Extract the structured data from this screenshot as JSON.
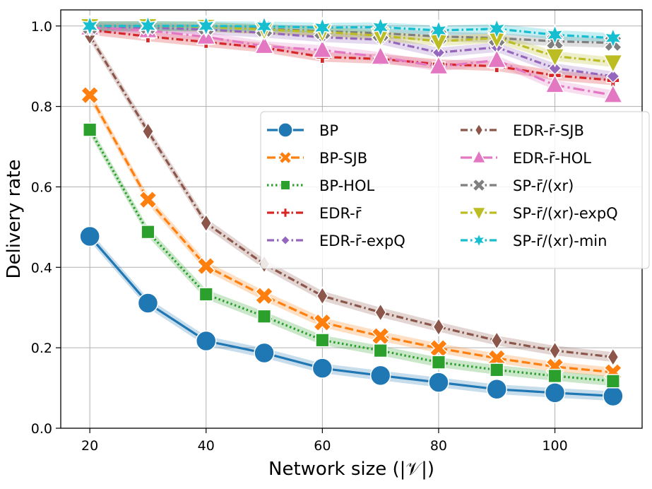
{
  "chart_data": {
    "type": "line",
    "xlabel": "Network size (|𝒱|)",
    "ylabel": "Delivery rate",
    "xlim": [
      15,
      115
    ],
    "ylim": [
      0.0,
      1.04
    ],
    "xticks": [
      20,
      40,
      60,
      80,
      100
    ],
    "yticks": [
      0.0,
      0.2,
      0.4,
      0.6,
      0.8,
      1.0
    ],
    "xtick_labels": [
      "20",
      "40",
      "60",
      "80",
      "100"
    ],
    "ytick_labels": [
      "0.0",
      "0.2",
      "0.4",
      "0.6",
      "0.8",
      "1.0"
    ],
    "grid": true,
    "legend_position": "center-right",
    "x": [
      20,
      30,
      40,
      50,
      60,
      70,
      80,
      90,
      100,
      110
    ],
    "series": [
      {
        "name": "BP",
        "color": "#1f77b4",
        "marker": "circle",
        "dash": "solid",
        "values": [
          0.477,
          0.311,
          0.217,
          0.187,
          0.149,
          0.131,
          0.114,
          0.097,
          0.088,
          0.08
        ]
      },
      {
        "name": "BP-SJB",
        "color": "#ff7f0e",
        "marker": "x",
        "dash": "dashed",
        "values": [
          0.828,
          0.568,
          0.403,
          0.329,
          0.263,
          0.229,
          0.199,
          0.174,
          0.153,
          0.139
        ]
      },
      {
        "name": "BP-HOL",
        "color": "#2ca02c",
        "marker": "square",
        "dash": "dotted",
        "values": [
          0.742,
          0.488,
          0.333,
          0.278,
          0.219,
          0.193,
          0.164,
          0.145,
          0.13,
          0.117
        ]
      },
      {
        "name": "EDR-r̄",
        "color": "#d62728",
        "marker": "plus",
        "dash": "dashdot",
        "values": [
          0.99,
          0.974,
          0.96,
          0.946,
          0.923,
          0.918,
          0.905,
          0.9,
          0.877,
          0.865
        ]
      },
      {
        "name": "EDR-r̄-expQ",
        "color": "#9467bd",
        "marker": "diamond",
        "dash": "dashdot",
        "values": [
          0.998,
          0.996,
          0.991,
          0.983,
          0.972,
          0.966,
          0.934,
          0.947,
          0.895,
          0.875
        ]
      },
      {
        "name": "EDR-r̄-SJB",
        "color": "#8c564b",
        "marker": "thin_diamond",
        "dash": "dashdot",
        "values": [
          0.975,
          0.738,
          0.51,
          0.408,
          0.329,
          0.288,
          0.252,
          0.218,
          0.193,
          0.177
        ]
      },
      {
        "name": "EDR-r̄-HOL",
        "color": "#e377c2",
        "marker": "triangle_up",
        "dash": "longdash",
        "values": [
          0.996,
          0.989,
          0.973,
          0.95,
          0.94,
          0.923,
          0.899,
          0.915,
          0.853,
          0.828
        ]
      },
      {
        "name": "SP-r̄/(xr)",
        "color": "#7f7f7f",
        "marker": "x",
        "dash": "dashdot",
        "values": [
          1.0,
          1.0,
          0.998,
          0.993,
          0.987,
          0.982,
          0.974,
          0.97,
          0.962,
          0.958
        ]
      },
      {
        "name": "SP-r̄/(xr)-expQ",
        "color": "#bcbd22",
        "marker": "triangle_down",
        "dash": "dashdot",
        "values": [
          1.0,
          1.0,
          0.998,
          0.991,
          0.985,
          0.976,
          0.962,
          0.97,
          0.925,
          0.91
        ]
      },
      {
        "name": "SP-r̄/(xr)-min",
        "color": "#17becf",
        "marker": "star",
        "dash": "dashdot",
        "values": [
          1.0,
          1.0,
          1.0,
          0.999,
          0.996,
          0.997,
          0.989,
          0.993,
          0.978,
          0.97
        ]
      }
    ]
  }
}
